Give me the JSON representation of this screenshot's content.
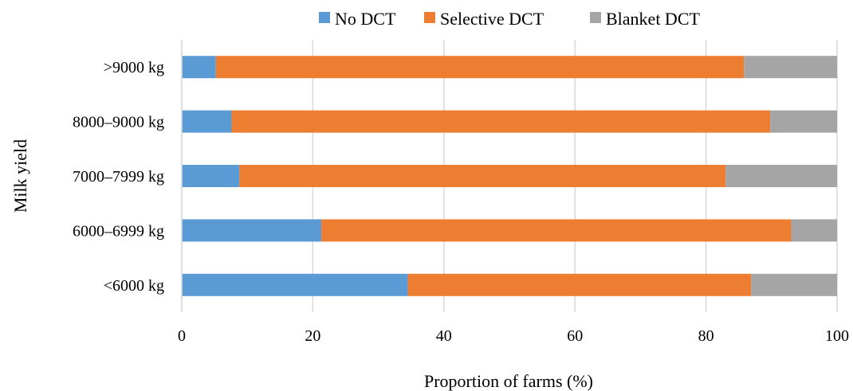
{
  "chart_data": {
    "type": "bar",
    "orientation": "horizontal",
    "stacked": true,
    "categories": [
      ">9000 kg",
      "8000–9000 kg",
      "7000–7999 kg",
      "6000–6999 kg",
      "<6000 kg"
    ],
    "series": [
      {
        "name": "No DCT",
        "color": "#5b9bd5",
        "values": [
          5.2,
          7.6,
          8.8,
          21.3,
          34.5
        ]
      },
      {
        "name": "Selective DCT",
        "color": "#ed7d31",
        "values": [
          80.6,
          82.2,
          74.2,
          71.7,
          52.4
        ]
      },
      {
        "name": "Blanket DCT",
        "color": "#a5a5a5",
        "values": [
          14.2,
          10.2,
          17.0,
          7.0,
          13.1
        ]
      }
    ],
    "xlabel": "Proportion of farms (%)",
    "ylabel": "Milk yield",
    "xlim": [
      0,
      100
    ],
    "xticks": [
      0,
      20,
      40,
      60,
      80,
      100
    ],
    "grid": true,
    "legend_position": "top"
  }
}
